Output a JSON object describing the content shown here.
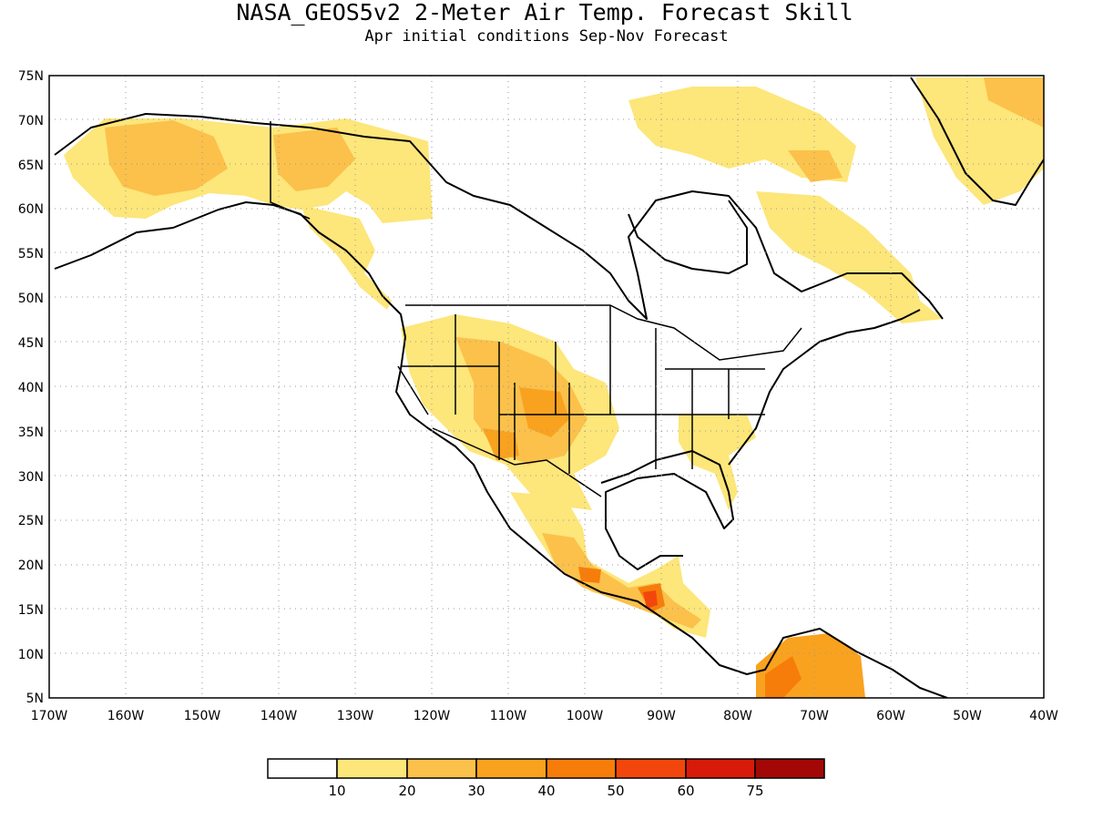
{
  "title": "NASA_GEOS5v2 2-Meter Air Temp. Forecast Skill",
  "subtitle": "Apr initial conditions  Sep-Nov Forecast",
  "lat_labels": [
    "75N",
    "70N",
    "65N",
    "60N",
    "55N",
    "50N",
    "45N",
    "40N",
    "35N",
    "30N",
    "25N",
    "20N",
    "15N",
    "10N",
    "5N"
  ],
  "lon_labels": [
    "170W",
    "160W",
    "150W",
    "140W",
    "130W",
    "120W",
    "110W",
    "100W",
    "90W",
    "80W",
    "70W",
    "60W",
    "50W",
    "40W"
  ],
  "colorbar": {
    "labels": [
      "10",
      "20",
      "30",
      "40",
      "50",
      "60",
      "75"
    ],
    "colors": [
      "#ffffff",
      "#fde67a",
      "#fbc14b",
      "#f9a21f",
      "#f77d0b",
      "#f2470c",
      "#d81a0b",
      "#a40806"
    ]
  },
  "chart_data": {
    "type": "heatmap",
    "variable": "2-Meter Air Temp. Forecast Skill",
    "lon_range": [
      -170,
      -40
    ],
    "lat_range": [
      5,
      75
    ],
    "grid": true,
    "levels": [
      10,
      20,
      30,
      40,
      50,
      60,
      75
    ]
  }
}
